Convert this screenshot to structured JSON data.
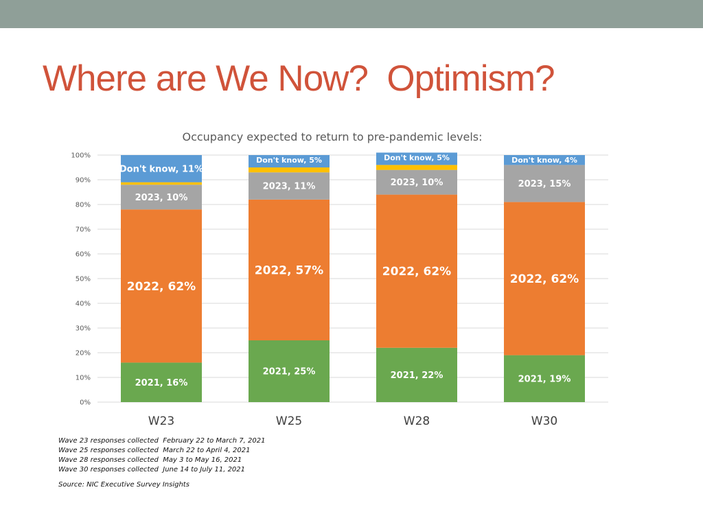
{
  "slide": {
    "title": "Where are We Now?  Optimism?",
    "notes": [
      "Wave 23 responses collected  February 22 to March 7, 2021",
      "Wave 25 responses collected  March 22 to April 4, 2021",
      "Wave 28 responses collected  May 3 to May 16, 2021",
      "Wave 30 responses collected  June 14 to July 11, 2021"
    ],
    "source": "Source: NIC Executive Survey Insights"
  },
  "chart_data": {
    "type": "bar",
    "stacked": true,
    "title": "Occupancy expected to return to pre-pandemic levels:",
    "categories": [
      "W23",
      "W25",
      "W28",
      "W30"
    ],
    "ylim": [
      0,
      100
    ],
    "yticks": [
      "0%",
      "10%",
      "20%",
      "30%",
      "40%",
      "50%",
      "60%",
      "70%",
      "80%",
      "90%",
      "100%"
    ],
    "grid": true,
    "series": [
      {
        "name": "2021",
        "color": "#6aa84f",
        "values": [
          16,
          25,
          22,
          19
        ],
        "labels": [
          "2021, 16%",
          "2021, 25%",
          "2021, 22%",
          "2021, 19%"
        ]
      },
      {
        "name": "2022",
        "color": "#ed7d31",
        "values": [
          62,
          57,
          62,
          62
        ],
        "labels": [
          "2022, 62%",
          "2022, 57%",
          "2022, 62%",
          "2022, 62%"
        ]
      },
      {
        "name": "2023",
        "color": "#a5a5a5",
        "values": [
          10,
          11,
          10,
          15
        ],
        "labels": [
          "2023, 10%",
          "2023, 11%",
          "2023, 10%",
          "2023, 15%"
        ]
      },
      {
        "name": "",
        "color": "#ffc000",
        "values": [
          1,
          2,
          2,
          0
        ],
        "labels": [
          "",
          "",
          "",
          ""
        ]
      },
      {
        "name": "Don't know",
        "color": "#5b9bd5",
        "values": [
          11,
          5,
          5,
          4
        ],
        "labels": [
          "Don't know, 11%",
          "Don't know, 5%",
          "Don't know, 5%",
          "Don't know, 4%"
        ]
      }
    ]
  }
}
